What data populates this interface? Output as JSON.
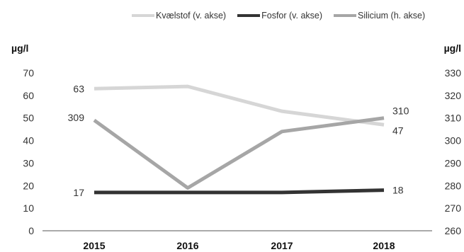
{
  "chart_data": {
    "type": "line",
    "categories": [
      "2015",
      "2016",
      "2017",
      "2018"
    ],
    "y_left": {
      "label": "µg/l",
      "min": 0,
      "max": 70,
      "ticks": [
        0,
        10,
        20,
        30,
        40,
        50,
        60,
        70
      ]
    },
    "y_right": {
      "label": "µg/l",
      "min": 260,
      "max": 330,
      "ticks": [
        260,
        270,
        280,
        290,
        300,
        310,
        320,
        330
      ]
    },
    "legend_position": "top",
    "grid": false,
    "series": [
      {
        "name": "Kvælstof (v. akse)",
        "axis": "left",
        "color": "#d6d6d6",
        "values": [
          63,
          64,
          53,
          47
        ],
        "labels": [
          {
            "index": 0,
            "text": "63",
            "side": "left"
          },
          {
            "index": 3,
            "text": "47",
            "side": "right"
          }
        ]
      },
      {
        "name": "Fosfor (v. akse)",
        "axis": "left",
        "color": "#333333",
        "values": [
          17,
          17,
          17,
          18
        ],
        "labels": [
          {
            "index": 0,
            "text": "17",
            "side": "left"
          },
          {
            "index": 3,
            "text": "18",
            "side": "right"
          }
        ]
      },
      {
        "name": "Silicium (h. akse)",
        "axis": "right",
        "color": "#a6a6a6",
        "values": [
          309,
          279,
          304,
          310
        ],
        "labels": [
          {
            "index": 0,
            "text": "309",
            "side": "left"
          },
          {
            "index": 3,
            "text": "310",
            "side": "right"
          }
        ]
      }
    ]
  }
}
